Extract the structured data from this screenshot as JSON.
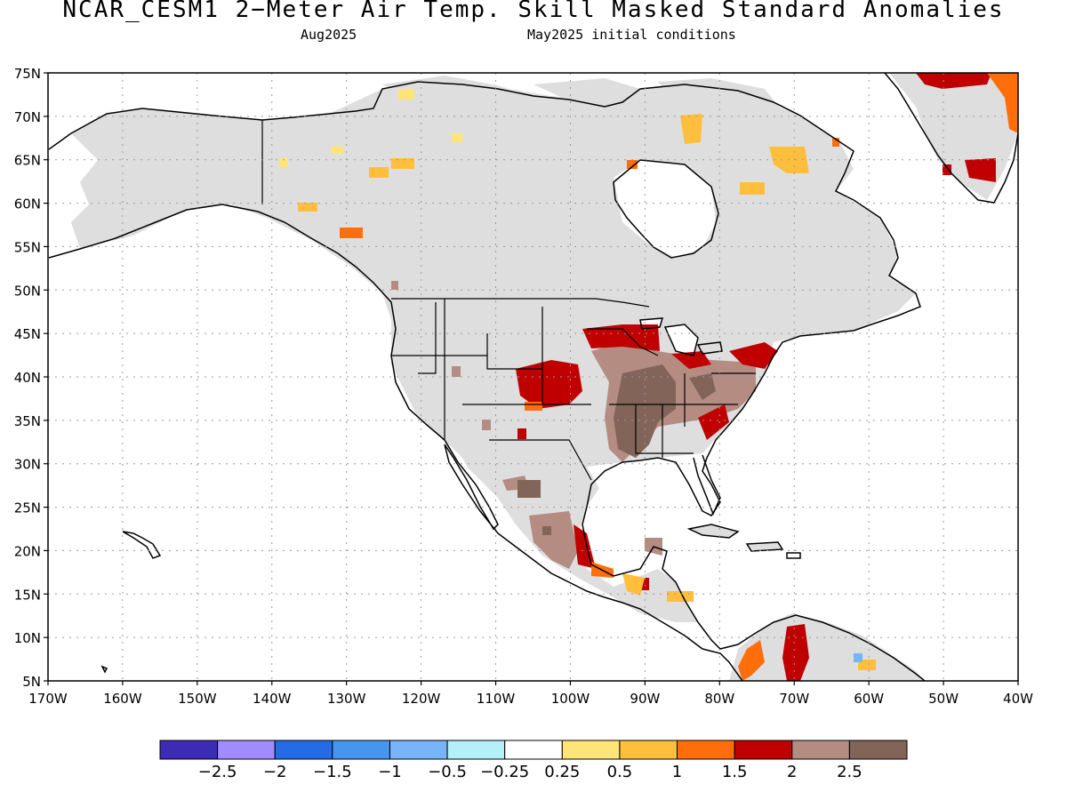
{
  "title": "NCAR_CESM1 2−Meter Air Temp. Skill Masked Standard Anomalies",
  "subtitle_left": "Aug2025",
  "subtitle_right": "May2025 initial conditions",
  "lat_labels": [
    "75N",
    "70N",
    "65N",
    "60N",
    "55N",
    "50N",
    "45N",
    "40N",
    "35N",
    "30N",
    "25N",
    "20N",
    "15N",
    "10N",
    "5N"
  ],
  "lon_labels": [
    "170W",
    "160W",
    "150W",
    "140W",
    "130W",
    "120W",
    "110W",
    "100W",
    "90W",
    "80W",
    "70W",
    "60W",
    "50W",
    "40W"
  ],
  "legend": {
    "colors": [
      "#3c2bb4",
      "#a08cff",
      "#236ce6",
      "#4696f0",
      "#78b4fa",
      "#b4f0fa",
      "#ffffff",
      "#ffe478",
      "#ffbe3c",
      "#ff6e0a",
      "#c00000",
      "#b48c82",
      "#826459"
    ],
    "labels": [
      "−2.5",
      "−2",
      "−1.5",
      "−1",
      "−0.5",
      "−0.25",
      "0.25",
      "0.5",
      "1",
      "1.5",
      "2",
      "2.5"
    ]
  },
  "colors": {
    "masked": "#dedede",
    "land_outline": "#000000",
    "ocean": "#ffffff"
  }
}
